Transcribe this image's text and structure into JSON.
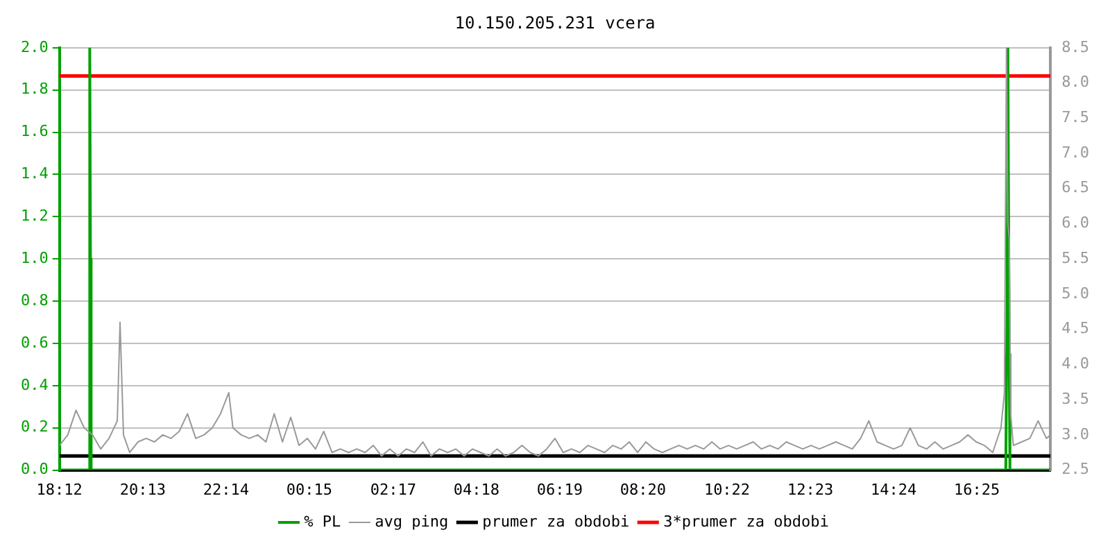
{
  "chart_data": {
    "type": "line",
    "title": "10.150.205.231 vcera",
    "xlim": [
      "--01-01T18:12",
      "--01-02T18:12"
    ],
    "xticks": [
      {
        "value": "--01-01T18:12",
        "label": "18:12"
      },
      {
        "value": "--01-01T20:13",
        "label": "20:13"
      },
      {
        "value": "--01-01T22:14",
        "label": "22:14"
      },
      {
        "value": "--01-02T00:15",
        "label": "00:15"
      },
      {
        "value": "--01-02T02:17",
        "label": "02:17"
      },
      {
        "value": "--01-02T04:18",
        "label": "04:18"
      },
      {
        "value": "--01-02T06:19",
        "label": "06:19"
      },
      {
        "value": "--01-02T08:20",
        "label": "08:20"
      },
      {
        "value": "--01-02T10:22",
        "label": "10:22"
      },
      {
        "value": "--01-02T12:23",
        "label": "12:23"
      },
      {
        "value": "--01-02T14:24",
        "label": "14:24"
      },
      {
        "value": "--01-02T16:25",
        "label": "16:25"
      }
    ],
    "ylim": [
      0,
      2
    ],
    "yticks": [
      {
        "value": 0,
        "label": "0.0"
      },
      0.2,
      0.4,
      0.6,
      0.8,
      {
        "value": 1,
        "label": "1.0"
      },
      1.2,
      1.4,
      1.6,
      1.8,
      {
        "value": 2,
        "label": "2.0"
      }
    ],
    "y2lim": [
      2.5,
      8.5
    ],
    "y2ticks": [
      2.5,
      {
        "value": 3,
        "label": "3.0"
      },
      3.5,
      {
        "value": 4,
        "label": "4.0"
      },
      4.5,
      {
        "value": 5,
        "label": "5.0"
      },
      5.5,
      {
        "value": 6,
        "label": "6.0"
      },
      6.5,
      {
        "value": 7,
        "label": "7.0"
      },
      7.5,
      {
        "value": 8,
        "label": "8.0"
      },
      8.5
    ],
    "grid": "y",
    "legend": "bottom",
    "marker": "none",
    "line_style": "solid",
    "series": [
      {
        "name": "% PL",
        "color": "#00a000",
        "x": [
          "--01-01T18:12",
          "--01-01T18:55",
          "--01-01T18:56",
          "--01-01T18:57",
          "--01-01T18:58",
          "--01-02T17:07",
          "--01-02T17:09",
          "--01-02T17:10",
          "--01-02T17:12",
          "--01-02T17:13",
          "--01-02T18:12"
        ],
        "values": [
          0,
          0,
          2.0,
          1.0,
          0,
          0,
          0.83,
          2.0,
          0.55,
          0,
          0
        ]
      },
      {
        "name": "avg ping",
        "color": "#999999",
        "axis": "y2",
        "x": [
          "--01-01T18:12",
          "--01-01T18:24",
          "--01-01T18:36",
          "--01-01T18:48",
          "--01-01T19:00",
          "--01-01T19:12",
          "--01-01T19:24",
          "--01-01T19:36",
          "--01-01T19:40",
          "--01-01T19:45",
          "--01-01T19:54",
          "--01-01T20:06",
          "--01-01T20:18",
          "--01-01T20:30",
          "--01-01T20:42",
          "--01-01T20:54",
          "--01-01T21:06",
          "--01-01T21:18",
          "--01-01T21:30",
          "--01-01T21:42",
          "--01-01T21:54",
          "--01-01T22:06",
          "--01-01T22:18",
          "--01-01T22:24",
          "--01-01T22:36",
          "--01-01T22:48",
          "--01-01T23:00",
          "--01-01T23:12",
          "--01-01T23:24",
          "--01-01T23:36",
          "--01-01T23:48",
          "--01-02T00:00",
          "--01-02T00:12",
          "--01-02T00:24",
          "--01-02T00:36",
          "--01-02T00:48",
          "--01-02T01:00",
          "--01-02T01:12",
          "--01-02T01:24",
          "--01-02T01:36",
          "--01-02T01:48",
          "--01-02T02:00",
          "--01-02T02:12",
          "--01-02T02:24",
          "--01-02T02:36",
          "--01-02T02:48",
          "--01-02T03:00",
          "--01-02T03:12",
          "--01-02T03:24",
          "--01-02T03:36",
          "--01-02T03:48",
          "--01-02T04:00",
          "--01-02T04:12",
          "--01-02T04:24",
          "--01-02T04:36",
          "--01-02T04:48",
          "--01-02T05:00",
          "--01-02T05:12",
          "--01-02T05:24",
          "--01-02T05:36",
          "--01-02T05:48",
          "--01-02T06:00",
          "--01-02T06:12",
          "--01-02T06:24",
          "--01-02T06:36",
          "--01-02T06:48",
          "--01-02T07:00",
          "--01-02T07:12",
          "--01-02T07:24",
          "--01-02T07:36",
          "--01-02T07:48",
          "--01-02T08:00",
          "--01-02T08:12",
          "--01-02T08:24",
          "--01-02T08:36",
          "--01-02T08:48",
          "--01-02T09:00",
          "--01-02T09:12",
          "--01-02T09:24",
          "--01-02T09:36",
          "--01-02T09:48",
          "--01-02T10:00",
          "--01-02T10:12",
          "--01-02T10:24",
          "--01-02T10:36",
          "--01-02T10:48",
          "--01-02T11:00",
          "--01-02T11:12",
          "--01-02T11:24",
          "--01-02T11:36",
          "--01-02T11:48",
          "--01-02T12:00",
          "--01-02T12:12",
          "--01-02T12:24",
          "--01-02T12:36",
          "--01-02T12:48",
          "--01-02T13:00",
          "--01-02T13:12",
          "--01-02T13:24",
          "--01-02T13:36",
          "--01-02T13:48",
          "--01-02T14:00",
          "--01-02T14:12",
          "--01-02T14:24",
          "--01-02T14:36",
          "--01-02T14:48",
          "--01-02T15:00",
          "--01-02T15:12",
          "--01-02T15:24",
          "--01-02T15:36",
          "--01-02T15:48",
          "--01-02T16:00",
          "--01-02T16:12",
          "--01-02T16:24",
          "--01-02T16:36",
          "--01-02T16:48",
          "--01-02T17:00",
          "--01-02T17:05",
          "--01-02T17:08",
          "--01-02T17:10",
          "--01-02T17:12",
          "--01-02T17:14",
          "--01-02T17:18",
          "--01-02T17:30",
          "--01-02T17:42",
          "--01-02T17:54",
          "--01-02T18:06",
          "--01-02T18:12"
        ],
        "values": [
          2.85,
          3.0,
          3.35,
          3.1,
          3.0,
          2.8,
          2.95,
          3.2,
          4.6,
          3.0,
          2.75,
          2.9,
          2.95,
          2.9,
          3.0,
          2.95,
          3.05,
          3.3,
          2.95,
          3.0,
          3.1,
          3.3,
          3.6,
          3.1,
          3.0,
          2.95,
          3.0,
          2.9,
          3.3,
          2.9,
          3.25,
          2.85,
          2.95,
          2.8,
          3.05,
          2.75,
          2.8,
          2.75,
          2.8,
          2.75,
          2.85,
          2.7,
          2.8,
          2.7,
          2.8,
          2.75,
          2.9,
          2.7,
          2.8,
          2.75,
          2.8,
          2.7,
          2.8,
          2.75,
          2.7,
          2.8,
          2.7,
          2.75,
          2.85,
          2.75,
          2.7,
          2.8,
          2.95,
          2.75,
          2.8,
          2.75,
          2.85,
          2.8,
          2.75,
          2.85,
          2.8,
          2.9,
          2.75,
          2.9,
          2.8,
          2.75,
          2.8,
          2.85,
          2.8,
          2.85,
          2.8,
          2.9,
          2.8,
          2.85,
          2.8,
          2.85,
          2.9,
          2.8,
          2.85,
          2.8,
          2.9,
          2.85,
          2.8,
          2.85,
          2.8,
          2.85,
          2.9,
          2.85,
          2.8,
          2.95,
          3.2,
          2.9,
          2.85,
          2.8,
          2.85,
          3.1,
          2.85,
          2.8,
          2.9,
          2.8,
          2.85,
          2.9,
          3.0,
          2.9,
          2.85,
          2.75,
          3.1,
          3.6,
          8.5,
          6.0,
          5.8,
          3.3,
          2.85,
          2.9,
          2.95,
          3.2,
          2.95,
          3.0
        ]
      },
      {
        "name": "prumer za obdobi",
        "color": "#000000",
        "axis": "y2",
        "x": [
          "--01-01T18:12",
          "--01-02T18:12"
        ],
        "values": [
          2.7,
          2.7
        ]
      },
      {
        "name": "3*prumer za obdobi",
        "color": "#ff0000",
        "axis": "y2",
        "x": [
          "--01-01T18:12",
          "--01-02T18:12"
        ],
        "values": [
          8.1,
          8.1
        ]
      }
    ]
  }
}
